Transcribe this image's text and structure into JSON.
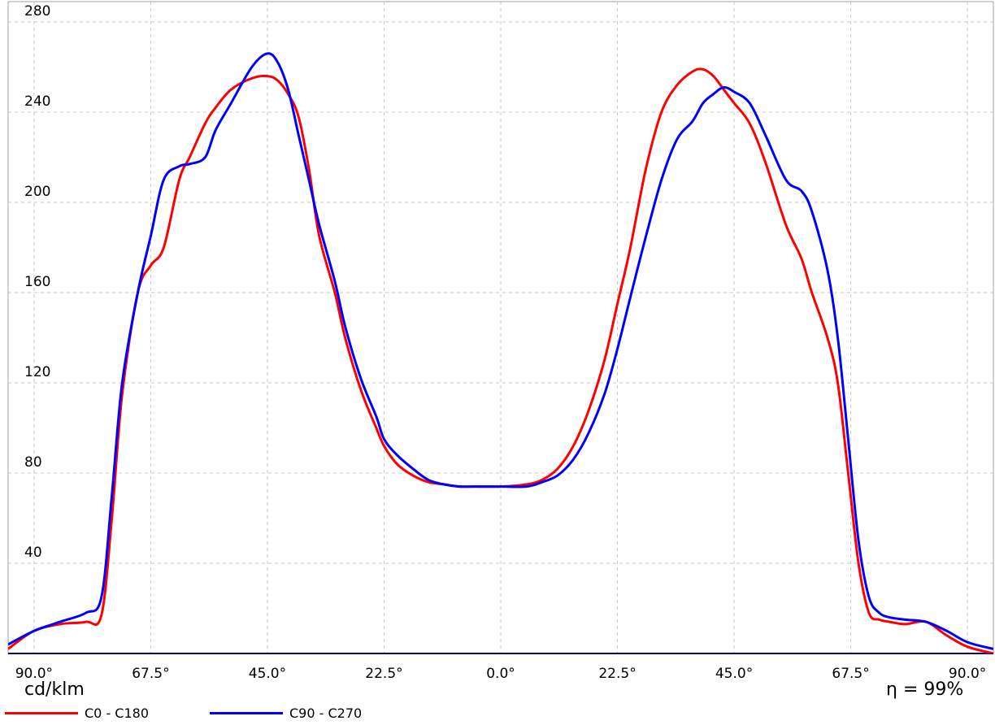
{
  "chart_data": {
    "type": "line",
    "ylim": [
      0,
      280
    ],
    "yticks": [
      40,
      80,
      120,
      160,
      200,
      240,
      280
    ],
    "xlim": [
      -95,
      95
    ],
    "xticks": [
      {
        "value": -90,
        "label": "90.0°"
      },
      {
        "value": -67.5,
        "label": "67.5°"
      },
      {
        "value": -45,
        "label": "45.0°"
      },
      {
        "value": -22.5,
        "label": "22.5°"
      },
      {
        "value": 0,
        "label": "0.0°"
      },
      {
        "value": 22.5,
        "label": "22.5°"
      },
      {
        "value": 45,
        "label": "45.0°"
      },
      {
        "value": 67.5,
        "label": "67.5°"
      },
      {
        "value": 90,
        "label": "90.0°"
      }
    ],
    "grid": true,
    "unit_label": "cd/klm",
    "efficiency_label": "η = 99%",
    "series": [
      {
        "name": "C0 - C180",
        "color": "#ff0000",
        "x": [
          -95,
          -90,
          -85,
          -80,
          -77,
          -75,
          -73,
          -70,
          -67.5,
          -65,
          -62,
          -60,
          -57,
          -55,
          -52,
          -48,
          -45,
          -43,
          -41,
          -39,
          -37,
          -35,
          -32,
          -30,
          -27,
          -24,
          -22.5,
          -20,
          -17,
          -14,
          -11,
          -8,
          -5,
          0,
          5,
          8,
          11,
          14,
          17,
          20,
          22.5,
          25,
          28,
          31,
          34,
          37,
          39,
          41,
          43,
          45,
          48,
          51,
          55,
          58,
          60,
          63,
          65,
          67,
          69,
          71,
          73,
          75,
          78,
          82,
          86,
          90,
          95
        ],
        "y": [
          2,
          10,
          13,
          14,
          17,
          60,
          115,
          160,
          172,
          180,
          210,
          220,
          235,
          242,
          250,
          255,
          256,
          254,
          248,
          238,
          215,
          185,
          160,
          140,
          117,
          100,
          92,
          84,
          79,
          76,
          75,
          74,
          74,
          74,
          75,
          77,
          82,
          92,
          108,
          130,
          155,
          180,
          215,
          240,
          252,
          258,
          259,
          256,
          250,
          244,
          235,
          218,
          190,
          175,
          160,
          140,
          120,
          80,
          40,
          18,
          15,
          14,
          13,
          14,
          8,
          3,
          0
        ]
      },
      {
        "name": "C90 - C270",
        "color": "#0000ff",
        "x": [
          -95,
          -90,
          -85,
          -80,
          -77,
          -75,
          -73,
          -70,
          -67.5,
          -65,
          -62,
          -60,
          -57,
          -55,
          -52,
          -48,
          -45,
          -43,
          -41,
          -39,
          -37,
          -35,
          -32,
          -30,
          -27,
          -24,
          -22.5,
          -20,
          -17,
          -14,
          -11,
          -8,
          -5,
          0,
          5,
          8,
          11,
          14,
          17,
          20,
          22.5,
          25,
          28,
          31,
          34,
          37,
          39,
          41,
          43,
          45,
          48,
          51,
          55,
          58,
          60,
          63,
          65,
          67,
          69,
          71,
          73,
          75,
          78,
          82,
          86,
          90,
          95
        ],
        "y": [
          4,
          10,
          14,
          18,
          25,
          70,
          120,
          160,
          185,
          210,
          216,
          217,
          220,
          232,
          244,
          260,
          266,
          262,
          250,
          230,
          210,
          190,
          165,
          145,
          122,
          105,
          95,
          88,
          82,
          77,
          75,
          74,
          74,
          74,
          74,
          76,
          79,
          86,
          98,
          115,
          135,
          158,
          185,
          210,
          228,
          236,
          244,
          248,
          251,
          249,
          244,
          230,
          210,
          205,
          196,
          170,
          140,
          95,
          50,
          25,
          18,
          16,
          15,
          14,
          10,
          5,
          2
        ]
      }
    ]
  }
}
